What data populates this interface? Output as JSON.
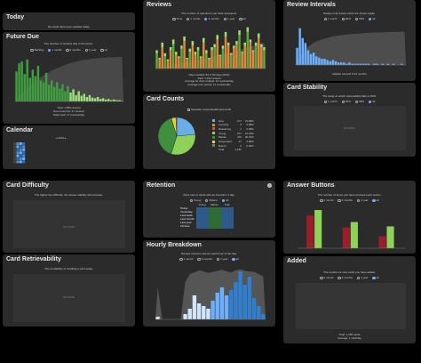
{
  "topbar": {
    "options": [
      "deck",
      "collection",
      "deck name",
      "last 12 months",
      "all history"
    ]
  },
  "today": {
    "title": "Today",
    "text": "No cards have been studied today."
  },
  "future_due": {
    "title": "Future Due",
    "subtitle": "The number of reviews due in the future.",
    "options": [
      "Backlog",
      "1 month",
      "3 months",
      "1 year",
      "all"
    ],
    "stats": [
      "Total: 1,586 reviews",
      "Due tomorrow: 47 reviews",
      "Daily load: 17 reviews/day"
    ],
    "chart_data": {
      "type": "bar",
      "series": [
        {
          "name": "reviews",
          "values": [
            47,
            60,
            63,
            43,
            66,
            37,
            50,
            40,
            56,
            33,
            30,
            45,
            26,
            33,
            23,
            30,
            20,
            27,
            16,
            24,
            14,
            19,
            10,
            16,
            9,
            12,
            7,
            10,
            6,
            5,
            7,
            4,
            5,
            3,
            4,
            2,
            3,
            2,
            2,
            1
          ]
        }
      ],
      "cumulative": true
    }
  },
  "calendar": {
    "title": "Calendar",
    "year": "2024"
  },
  "reviews": {
    "title": "Reviews",
    "subtitle": "The number of questions you have answered.",
    "options": [
      "Time",
      "1 month",
      "3 months",
      "1 year",
      "all"
    ],
    "stats": [
      "Days studied: 81 of 90 days (90%)",
      "Total: 1,012 reviews",
      "Average for days studied: 12 reviews/day",
      "Average over period: 11 reviews/day"
    ],
    "chart_data": {
      "type": "bar",
      "series": [
        {
          "name": "learn",
          "values": [
            2,
            1,
            3,
            2,
            1,
            2,
            3,
            2,
            1,
            2,
            3,
            1,
            2,
            3,
            2,
            2,
            1,
            3,
            2,
            1,
            2,
            2,
            3,
            1,
            2,
            3,
            2,
            1,
            2,
            2,
            3,
            1,
            2,
            3,
            2,
            1,
            2,
            3,
            2,
            2
          ]
        },
        {
          "name": "review",
          "values": [
            10,
            6,
            14,
            8,
            5,
            12,
            16,
            9,
            7,
            13,
            18,
            6,
            11,
            15,
            9,
            12,
            7,
            17,
            10,
            6,
            12,
            14,
            19,
            8,
            13,
            21,
            15,
            9,
            13,
            16,
            22,
            10,
            15,
            24,
            17,
            11,
            15,
            20,
            14,
            12
          ]
        }
      ]
    }
  },
  "card_counts": {
    "title": "Card Counts",
    "checkbox": "Separate suspended/buried cards",
    "headers": [
      "",
      "",
      ""
    ],
    "rows": [
      {
        "label": "New",
        "count": "277",
        "pct": "23.48%",
        "color": "#6aaee8"
      },
      {
        "label": "Learning",
        "count": "8",
        "pct": "0.68%",
        "color": "#e0863a"
      },
      {
        "label": "Relearning",
        "count": "1",
        "pct": "0.08%",
        "color": "#d24f4f"
      },
      {
        "label": "Young",
        "count": "371",
        "pct": "31.44%",
        "color": "#8fd25a"
      },
      {
        "label": "Mature",
        "count": "476",
        "pct": "40.34%",
        "color": "#3f8f3f"
      },
      {
        "label": "Suspended",
        "count": "47",
        "pct": "3.98%",
        "color": "#e6d23c"
      },
      {
        "label": "Buried",
        "count": "0",
        "pct": "0.00%",
        "color": "#777"
      },
      {
        "label": "Total",
        "count": "1,180",
        "pct": "",
        "color": ""
      }
    ],
    "chart_data": {
      "type": "pie",
      "slices": [
        {
          "name": "New",
          "value": 277
        },
        {
          "name": "Young",
          "value": 371
        },
        {
          "name": "Mature",
          "value": 476
        },
        {
          "name": "Suspended",
          "value": 47
        },
        {
          "name": "Learning",
          "value": 8
        }
      ]
    }
  },
  "review_intervals": {
    "title": "Review Intervals",
    "subtitle": "Delays until review cards are shown again.",
    "options": [
      "1 month",
      "50%",
      "95%",
      "all"
    ],
    "stats": [
      "Median interval: 8.14 months"
    ],
    "chart_data": {
      "type": "bar",
      "values": [
        14,
        30,
        22,
        18,
        12,
        9,
        10,
        7,
        6,
        5,
        5,
        4,
        3,
        4,
        3,
        2,
        2,
        2,
        1,
        2,
        1,
        1,
        1,
        1,
        1,
        1,
        1,
        0,
        1,
        1,
        0,
        1,
        0,
        1,
        0,
        1,
        0,
        0,
        1,
        0
      ]
    }
  },
  "card_stability": {
    "title": "Card Stability",
    "subtitle": "The delay at which retrievability falls to 90%.",
    "options": [
      "1 month",
      "50%",
      "95%",
      "all"
    ],
    "nodata": "NO DATA"
  },
  "card_difficulty": {
    "title": "Card Difficulty",
    "subtitle": "The higher the difficulty, the slower stability will increase.",
    "nodata": "NO DATA"
  },
  "card_retrievability": {
    "title": "Card Retrievability",
    "subtitle": "The probability of recalling a card today.",
    "nodata": "NO DATA"
  },
  "retention": {
    "title": "Retention",
    "subtitle": "Pass rate of cards with an interval ≥ 1 day.",
    "options": [
      "Young",
      "Mature",
      "All"
    ],
    "columns": [
      "Young",
      "Mature",
      "Total"
    ],
    "rows": [
      {
        "label": "Today",
        "v": [
          "",
          "",
          ""
        ]
      },
      {
        "label": "Yesterday",
        "v": [
          "",
          "",
          ""
        ]
      },
      {
        "label": "Last week",
        "v": [
          "",
          "",
          ""
        ]
      },
      {
        "label": "Last month",
        "v": [
          "",
          "",
          ""
        ]
      },
      {
        "label": "Last year",
        "v": [
          "",
          "",
          ""
        ]
      },
      {
        "label": "All time",
        "v": [
          "",
          "",
          ""
        ]
      }
    ]
  },
  "hourly": {
    "title": "Hourly Breakdown",
    "subtitle": "Review success rate for each hour of the day.",
    "options": [
      "1 month",
      "3 months",
      "1 year",
      "all"
    ],
    "chart_data": {
      "type": "bar",
      "values": [
        1,
        0,
        0,
        0,
        0,
        0,
        2,
        4,
        9,
        6,
        5,
        4,
        7,
        10,
        12,
        9,
        11,
        14,
        18,
        13,
        16,
        8,
        5,
        2
      ],
      "success": [
        60,
        0,
        0,
        0,
        0,
        0,
        70,
        85,
        88,
        92,
        90,
        87,
        89,
        91,
        93,
        90,
        88,
        92,
        94,
        91,
        90,
        89,
        85,
        80
      ]
    }
  },
  "answer_buttons": {
    "title": "Answer Buttons",
    "subtitle": "The number of times you have pressed each button.",
    "options": [
      "1 month",
      "3 months",
      "1 year",
      "all"
    ],
    "chart_data": {
      "type": "bar",
      "categories": [
        "Learning",
        "Young",
        "Mature"
      ],
      "series": [
        {
          "name": "Again",
          "values": [
            60,
            38,
            22
          ]
        },
        {
          "name": "Hard",
          "values": [
            0,
            0,
            0
          ]
        },
        {
          "name": "Good",
          "values": [
            70,
            48,
            40
          ]
        },
        {
          "name": "Easy",
          "values": [
            0,
            0,
            0
          ]
        }
      ]
    }
  },
  "added": {
    "title": "Added",
    "subtitle": "The number of new cards you have added.",
    "options": [
      "1 month",
      "3 months",
      "1 year",
      "all"
    ],
    "stats": [
      "Total: 1,256 cards",
      "Average: 1 card/day"
    ]
  },
  "colors": {
    "card_bg": "#2b2b2b",
    "accent": "#6ab0ff",
    "green_dark": "#3a7a2e",
    "green_light": "#8fd25a",
    "orange": "#e0863a",
    "red": "#9b1e2a"
  }
}
